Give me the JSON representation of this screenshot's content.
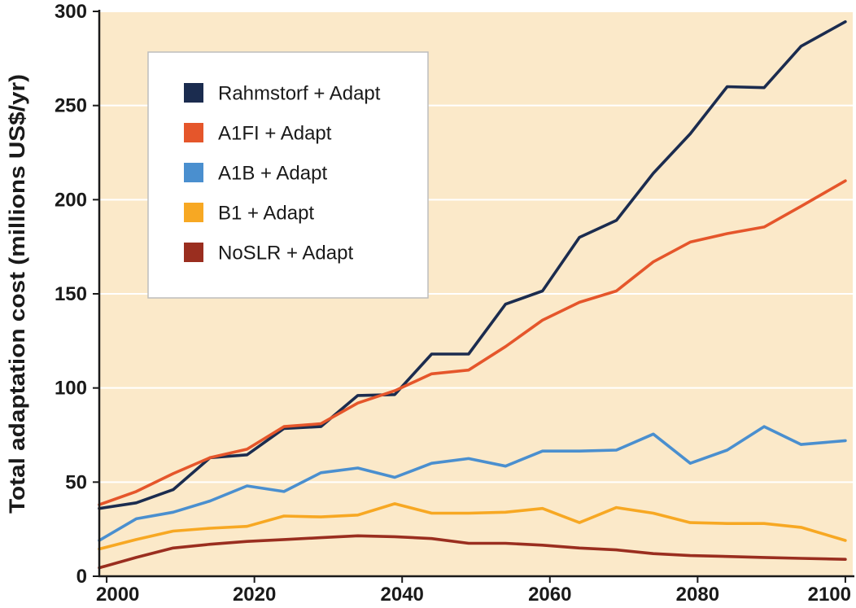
{
  "chart_data": {
    "type": "line",
    "title": "",
    "xlabel": "",
    "ylabel": "Total adaptation cost (millions US$/yr)",
    "xlim": [
      1999,
      2101
    ],
    "ylim": [
      0,
      300
    ],
    "x_ticks": [
      2000,
      2020,
      2040,
      2060,
      2080,
      2100
    ],
    "x_tick_labels": [
      "2000",
      "2020",
      "2040",
      "2060",
      "2080",
      "2100"
    ],
    "y_ticks": [
      0,
      50,
      100,
      150,
      200,
      250,
      300
    ],
    "y_tick_labels": [
      "0",
      "50",
      "100",
      "150",
      "200",
      "250",
      "300"
    ],
    "grid": "horizontal",
    "legend_position": "top-left",
    "background_color": "#fbe9c9",
    "grid_color": "#ffffff",
    "x": [
      1999,
      2004,
      2009,
      2014,
      2019,
      2024,
      2029,
      2034,
      2039,
      2044,
      2049,
      2054,
      2059,
      2064,
      2069,
      2074,
      2079,
      2084,
      2089,
      2094,
      2100
    ],
    "series": [
      {
        "name": "Rahmstorf + Adapt",
        "color": "#1b2c4f",
        "values": [
          36,
          39,
          46,
          63,
          64.5,
          78.5,
          79.5,
          96,
          96.5,
          118,
          118,
          144.5,
          151.5,
          180,
          189,
          214,
          235,
          260,
          259.5,
          281.5,
          294.5
        ]
      },
      {
        "name": "A1FI + Adapt",
        "color": "#e5562b",
        "values": [
          38,
          45,
          54.5,
          63,
          67.5,
          79.5,
          81,
          92,
          98.5,
          107.5,
          109.5,
          122,
          136,
          145.5,
          151.5,
          167,
          177.5,
          182,
          185.5,
          196.5,
          210
        ]
      },
      {
        "name": "A1B + Adapt",
        "color": "#4a8fcf",
        "values": [
          19,
          30.5,
          34,
          40,
          48,
          45,
          55,
          57.5,
          52.5,
          60,
          62.5,
          58.5,
          66.5,
          66.5,
          67,
          75.5,
          60,
          67,
          79.5,
          70,
          72
        ]
      },
      {
        "name": "B1 + Adapt",
        "color": "#f7a823",
        "values": [
          14.5,
          19.5,
          24,
          25.5,
          26.5,
          32,
          31.5,
          32.5,
          38.5,
          33.5,
          33.5,
          34,
          36,
          28.5,
          36.5,
          33.5,
          28.5,
          28,
          28,
          26,
          19
        ]
      },
      {
        "name": "NoSLR + Adapt",
        "color": "#9a2e1f",
        "values": [
          4.5,
          10,
          15,
          17,
          18.5,
          19.5,
          20.5,
          21.5,
          21,
          20,
          17.5,
          17.5,
          16.5,
          15,
          14,
          12,
          11,
          10.5,
          10,
          9.5,
          9
        ]
      }
    ]
  }
}
